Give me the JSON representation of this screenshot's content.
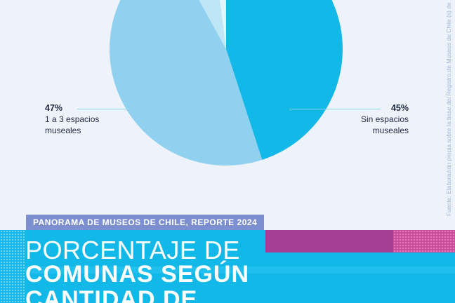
{
  "chart_data": {
    "type": "pie",
    "slices": [
      {
        "label": "Sin espacios museales",
        "value": 45,
        "pct_label": "45%",
        "color": "#12b8e8"
      },
      {
        "label": "1 a 3 espacios museales",
        "value": 47,
        "pct_label": "47%",
        "color": "#8fd1ee"
      },
      {
        "label": "",
        "value": 6,
        "color": "#bfe6f6"
      },
      {
        "label": "",
        "value": 2,
        "color": "#e4f4fb"
      }
    ]
  },
  "callouts": {
    "left": {
      "pct": "47%",
      "line1": "1 a 3 espacios",
      "line2": "museales"
    },
    "right": {
      "pct": "45%",
      "line1": "Sin espacios",
      "line2": "museales"
    }
  },
  "source_note": "Fuente: Elaboración propia sobre la base del Registro de Museos de Chile (s) de ab",
  "report_label": "PANORAMA DE MUSEOS DE CHILE, REPORTE 2024",
  "title": {
    "line1": "PORCENTAJE DE",
    "line2": "COMUNAS SEGÚN",
    "line3": "CANTIDAD DE"
  },
  "colors": {
    "background": "#eef3fb",
    "banner": "#12b8e8",
    "magenta": "#a23e93",
    "label_bg": "#7c8fd0"
  }
}
